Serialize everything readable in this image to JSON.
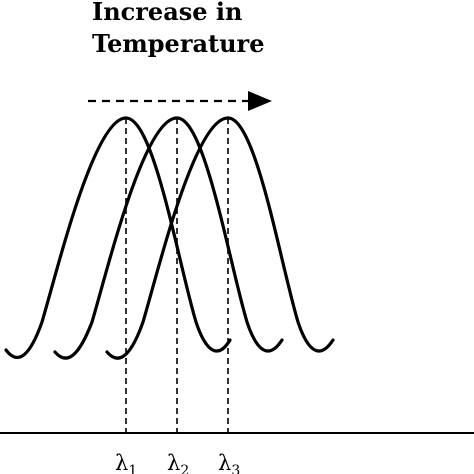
{
  "title_line1": "Increase in",
  "title_line2": "Temperature",
  "peaks": [
    {
      "symbol": "λ",
      "subscript": "1"
    },
    {
      "symbol": "λ",
      "subscript": "2"
    },
    {
      "symbol": "λ",
      "subscript": "3"
    }
  ],
  "colors": {
    "ink": "#000000",
    "background": "#ffffff"
  }
}
